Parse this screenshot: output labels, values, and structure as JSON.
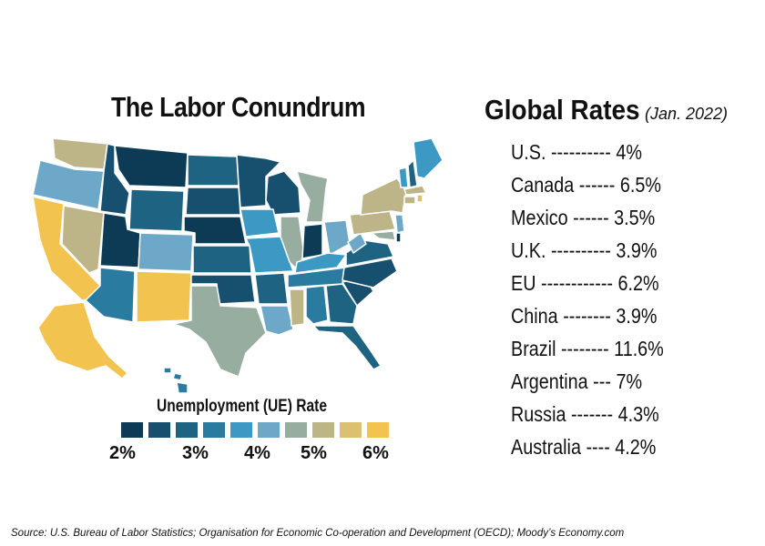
{
  "map_title": "The Labor Conundrum",
  "legend": {
    "title": "Unemployment (UE) Rate",
    "colors": [
      "#0d3b56",
      "#174f6e",
      "#1f6382",
      "#2a7ba0",
      "#3b99c4",
      "#6ea8c8",
      "#97ada0",
      "#bdb487",
      "#dcc072",
      "#f3c350"
    ],
    "ticks": [
      "2%",
      "3%",
      "4%",
      "5%",
      "6%"
    ]
  },
  "global_rates": {
    "title": "Global Rates",
    "subtitle": "(Jan. 2022)",
    "rows": [
      {
        "country": "U.S.",
        "dashes": "----------",
        "rate": "4%"
      },
      {
        "country": "Canada",
        "dashes": "------",
        "rate": "6.5%"
      },
      {
        "country": "Mexico",
        "dashes": "------",
        "rate": "3.5%"
      },
      {
        "country": "U.K.",
        "dashes": "----------",
        "rate": "3.9%"
      },
      {
        "country": "EU",
        "dashes": "------------",
        "rate": "6.2%"
      },
      {
        "country": "China",
        "dashes": "--------",
        "rate": "3.9%"
      },
      {
        "country": "Brazil",
        "dashes": "--------",
        "rate": "11.6%"
      },
      {
        "country": "Argentina",
        "dashes": "---",
        "rate": "7%"
      },
      {
        "country": "Russia",
        "dashes": "-------",
        "rate": "4.3%"
      },
      {
        "country": "Australia",
        "dashes": "----",
        "rate": "4.2%"
      }
    ]
  },
  "source": "Source: U.S. Bureau of Labor Statistics; Organisation for Economic Co-operation and Development (OECD); Moody’s Economy.com"
}
